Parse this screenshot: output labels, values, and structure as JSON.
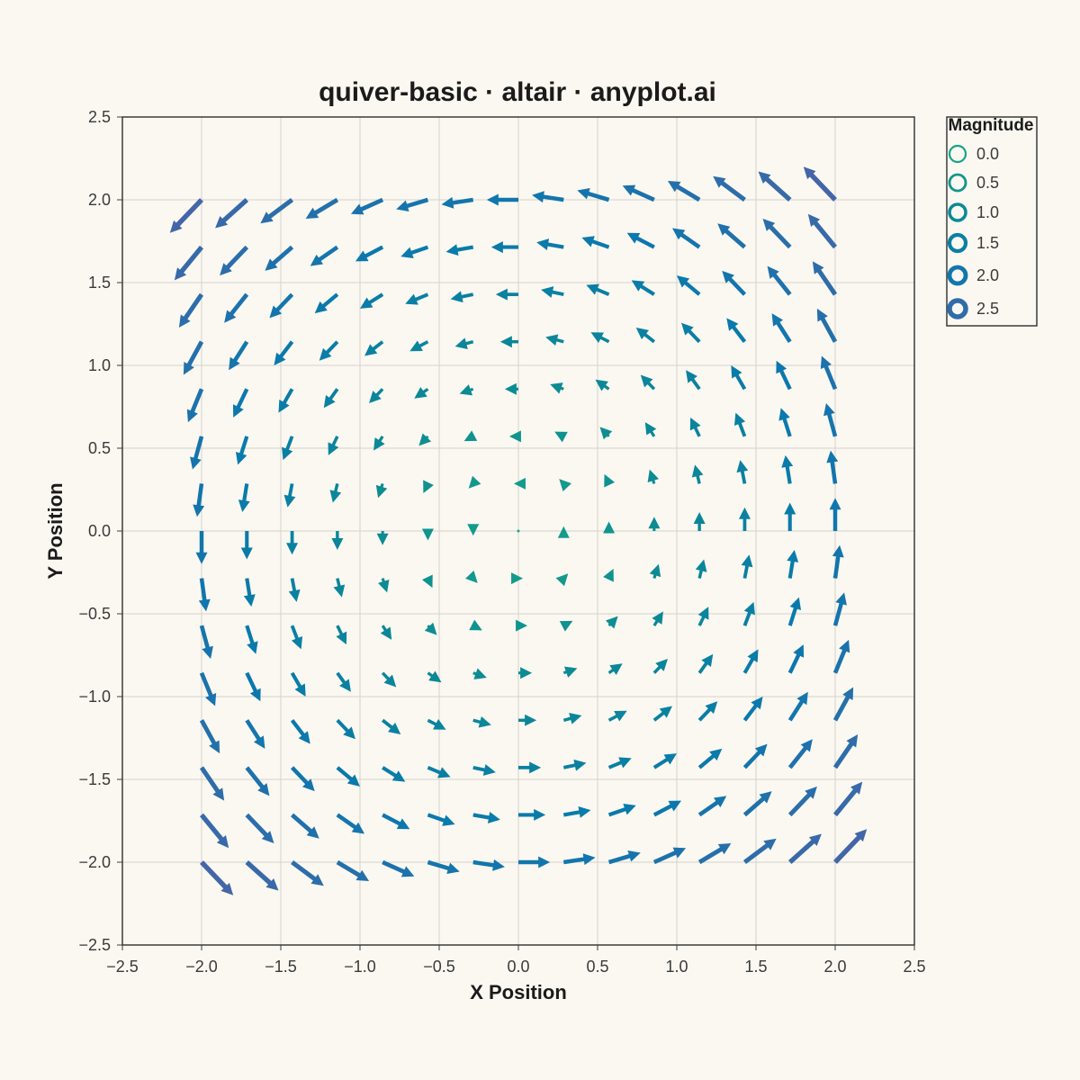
{
  "chart_data": {
    "type": "quiver",
    "title": "quiver-basic · altair · anyplot.ai",
    "xlabel": "X Position",
    "ylabel": "Y Position",
    "xlim": [
      -2.5,
      2.5
    ],
    "ylim": [
      -2.5,
      2.5
    ],
    "xticks": [
      -2.5,
      -2.0,
      -1.5,
      -1.0,
      -0.5,
      0.0,
      0.5,
      1.0,
      1.5,
      2.0,
      2.5
    ],
    "yticks": [
      -2.5,
      -2.0,
      -1.5,
      -1.0,
      -0.5,
      0.0,
      0.5,
      1.0,
      1.5,
      2.0,
      2.5
    ],
    "xtick_labels": [
      "−2.5",
      "−2.0",
      "−1.5",
      "−1.0",
      "−0.5",
      "0.0",
      "0.5",
      "1.0",
      "1.5",
      "2.0",
      "2.5"
    ],
    "ytick_labels": [
      "−2.5",
      "−2.0",
      "−1.5",
      "−1.0",
      "−0.5",
      "0.0",
      "0.5",
      "1.0",
      "1.5",
      "2.0",
      "2.5"
    ],
    "grid": true,
    "field": {
      "formula": "u = -y, v = x",
      "x_start": -2.0,
      "x_end": 2.0,
      "y_start": -2.0,
      "y_end": 2.0,
      "count": 15,
      "arrow_scale": 0.1
    },
    "color_scale": {
      "domain": [
        0.0,
        2.83
      ],
      "range": [
        "#17A488",
        "#0B8A94",
        "#0A78AE",
        "#4466A8"
      ]
    },
    "legend": {
      "title": "Magnitude",
      "position": "top-right",
      "entries": [
        "0.0",
        "0.5",
        "1.0",
        "1.5",
        "2.0",
        "2.5"
      ],
      "values": [
        0.0,
        0.5,
        1.0,
        1.5,
        2.0,
        2.5
      ]
    }
  }
}
